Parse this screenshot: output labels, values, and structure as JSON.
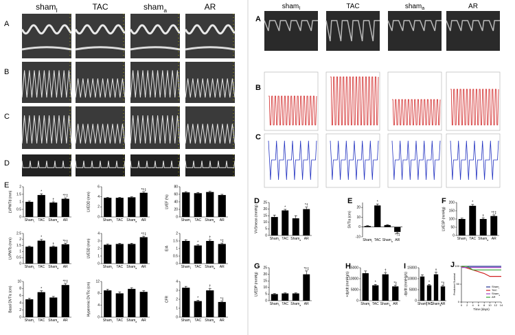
{
  "figure": {
    "left_columns": [
      {
        "text": "sham",
        "sub": "I"
      },
      {
        "text": "TAC"
      },
      {
        "text": "sham",
        "sub": "a"
      },
      {
        "text": "AR"
      }
    ],
    "left_panels": [
      "A",
      "B",
      "C",
      "D",
      "E"
    ],
    "right_columns": [
      {
        "text": "sham",
        "sub": "I"
      },
      {
        "text": "TAC"
      },
      {
        "text": "sham",
        "sub": "a"
      },
      {
        "text": "AR"
      }
    ],
    "right_panels": [
      "A",
      "B",
      "C"
    ]
  },
  "chart_data": [
    {
      "type": "bar",
      "ylabel": "LVPWTd (mm)",
      "categories": [
        "Sham",
        "TAC",
        "Sham",
        "AR"
      ],
      "category_subscripts": [
        "I",
        null,
        "a",
        null
      ],
      "values": [
        1.0,
        1.45,
        0.95,
        1.2
      ],
      "errors": [
        0.05,
        0.08,
        0.05,
        0.06
      ],
      "markers": [
        null,
        "*",
        "†",
        "*†‡"
      ],
      "ylim": [
        0,
        2
      ],
      "yticks": [
        0,
        0.5,
        1,
        1.5,
        2
      ],
      "color": "#000000"
    },
    {
      "type": "bar",
      "ylabel": "LVEDD (mm)",
      "categories": [
        "Sham",
        "TAC",
        "Sham",
        "AR"
      ],
      "category_subscripts": [
        "I",
        null,
        "a",
        null
      ],
      "values": [
        3.8,
        3.8,
        3.9,
        4.8
      ],
      "errors": [
        0.1,
        0.1,
        0.1,
        0.15
      ],
      "markers": [
        null,
        null,
        null,
        "*†‡"
      ],
      "ylim": [
        0,
        6
      ],
      "yticks": [
        0,
        2,
        4,
        6
      ],
      "color": "#000000"
    },
    {
      "type": "bar",
      "ylabel": "LVEF (%)",
      "categories": [
        "Sham",
        "TAC",
        "Sham",
        "AR"
      ],
      "category_subscripts": [
        "I",
        null,
        "a",
        null
      ],
      "values": [
        65,
        63,
        66,
        58
      ],
      "errors": [
        2,
        2,
        2,
        2
      ],
      "markers": [
        null,
        null,
        null,
        null
      ],
      "ylim": [
        0,
        80
      ],
      "yticks": [
        0,
        20,
        40,
        60,
        80
      ],
      "color": "#000000"
    },
    {
      "type": "bar",
      "ylabel": "LVPWTs (mm)",
      "categories": [
        "Sham",
        "TAC",
        "Sham",
        "AR"
      ],
      "category_subscripts": [
        "I",
        null,
        "a",
        null
      ],
      "values": [
        1.4,
        1.9,
        1.4,
        1.6
      ],
      "errors": [
        0.05,
        0.1,
        0.05,
        0.08
      ],
      "markers": [
        null,
        "*",
        "†",
        "*†‡"
      ],
      "ylim": [
        0,
        2.5
      ],
      "yticks": [
        0,
        0.5,
        1,
        1.5,
        2,
        2.5
      ],
      "color": "#000000"
    },
    {
      "type": "bar",
      "ylabel": "LVESD (mm)",
      "categories": [
        "Sham",
        "TAC",
        "Sham",
        "AR"
      ],
      "category_subscripts": [
        "I",
        null,
        "a",
        null
      ],
      "values": [
        2.5,
        2.6,
        2.6,
        3.5
      ],
      "errors": [
        0.1,
        0.1,
        0.1,
        0.12
      ],
      "markers": [
        null,
        null,
        null,
        "*†‡"
      ],
      "ylim": [
        0,
        4
      ],
      "yticks": [
        0,
        1,
        2,
        3,
        4
      ],
      "color": "#000000"
    },
    {
      "type": "bar",
      "ylabel": "E/A",
      "categories": [
        "Sham",
        "TAC",
        "Sham",
        "AR"
      ],
      "category_subscripts": [
        "I",
        null,
        "a",
        null
      ],
      "values": [
        1.5,
        1.2,
        1.5,
        1.3
      ],
      "errors": [
        0.08,
        0.06,
        0.08,
        0.06
      ],
      "markers": [
        null,
        "*",
        "†",
        "*‡"
      ],
      "ylim": [
        0,
        2
      ],
      "yticks": [
        0,
        0.5,
        1,
        1.5,
        2
      ],
      "color": "#000000"
    },
    {
      "type": "bar",
      "ylabel": "Basal DVTIc (cm)",
      "categories": [
        "Sham",
        "TAC",
        "Sham",
        "AR"
      ],
      "category_subscripts": [
        "I",
        null,
        "a",
        null
      ],
      "values": [
        5,
        7,
        5.5,
        9
      ],
      "errors": [
        0.3,
        0.4,
        0.3,
        0.4
      ],
      "markers": [
        null,
        "*",
        null,
        "*†‡"
      ],
      "ylim": [
        0,
        10
      ],
      "yticks": [
        0,
        2,
        4,
        6,
        8,
        10
      ],
      "color": "#000000"
    },
    {
      "type": "bar",
      "ylabel": "Hyperemic DVTIc (cm)",
      "categories": [
        "Sham",
        "TAC",
        "Sham",
        "AR"
      ],
      "category_subscripts": [
        "I",
        null,
        "a",
        null
      ],
      "values": [
        9,
        8,
        9.5,
        8.5
      ],
      "errors": [
        0.4,
        0.5,
        0.4,
        0.4
      ],
      "markers": [
        null,
        null,
        null,
        null
      ],
      "ylim": [
        0,
        12
      ],
      "yticks": [
        0,
        4,
        8,
        12
      ],
      "color": "#000000"
    },
    {
      "type": "bar",
      "ylabel": "CFR",
      "categories": [
        "Sham",
        "TAC",
        "Sham",
        "AR"
      ],
      "category_subscripts": [
        "I",
        null,
        "a",
        null
      ],
      "values": [
        3.3,
        1.8,
        3.0,
        1.7
      ],
      "errors": [
        0.15,
        0.1,
        0.2,
        0.1
      ],
      "markers": [
        null,
        "*",
        "†",
        "*‡"
      ],
      "ylim": [
        0,
        4
      ],
      "yticks": [
        0,
        1,
        2,
        3,
        4
      ],
      "color": "#000000"
    },
    {
      "type": "bar",
      "panel": "D",
      "ylabel": "VVSmean (mmHg)",
      "categories": [
        "Sham",
        "TAC",
        "Sham",
        "AR"
      ],
      "category_subscripts": [
        "I",
        null,
        "a",
        null
      ],
      "values": [
        14,
        19,
        13,
        20
      ],
      "errors": [
        1.5,
        0.8,
        2,
        1.5
      ],
      "markers": [
        null,
        "*",
        null,
        "*†"
      ],
      "ylim": [
        0,
        25
      ],
      "yticks": [
        0,
        5,
        10,
        15,
        20,
        25
      ],
      "color": "#000000"
    },
    {
      "type": "bar",
      "panel": "E",
      "ylabel": "SVTIa (cm)",
      "categories": [
        "Sham",
        "TAC",
        "Sham",
        "AR"
      ],
      "category_subscripts": [
        "I",
        null,
        "a",
        null
      ],
      "values": [
        1,
        22,
        2,
        -5
      ],
      "errors": [
        0.5,
        1.5,
        0.5,
        1
      ],
      "markers": [
        null,
        "*",
        null,
        "*†‡"
      ],
      "ylim": [
        -10,
        25
      ],
      "yticks": [
        -10,
        0,
        10,
        20
      ],
      "color": "#000000"
    },
    {
      "type": "bar",
      "panel": "F",
      "ylabel": "LVESP (mmHg)",
      "categories": [
        "Sham",
        "TAC",
        "Sham",
        "AR"
      ],
      "category_subscripts": [
        "I",
        null,
        "a",
        null
      ],
      "values": [
        100,
        180,
        100,
        118
      ],
      "errors": [
        5,
        8,
        6,
        7
      ],
      "markers": [
        null,
        "*",
        "†",
        "*†‡"
      ],
      "ylim": [
        0,
        200
      ],
      "yticks": [
        0,
        50,
        100,
        150,
        200
      ],
      "color": "#000000"
    },
    {
      "type": "bar",
      "panel": "G",
      "ylabel": "LVEDP (mmHg)",
      "categories": [
        "Sham",
        "TAC",
        "Sham",
        "AR"
      ],
      "category_subscripts": [
        "I",
        null,
        "a",
        null
      ],
      "values": [
        5,
        5.5,
        5.5,
        20
      ],
      "errors": [
        0.4,
        0.4,
        0.4,
        2.5
      ],
      "markers": [
        null,
        null,
        null,
        "*†‡"
      ],
      "ylim": [
        0,
        25
      ],
      "yticks": [
        0,
        5,
        10,
        15,
        20,
        25
      ],
      "color": "#000000"
    },
    {
      "type": "bar",
      "panel": "H",
      "ylabel": "+dp/dt (mmHg/s)",
      "categories": [
        "Sham",
        "TAC",
        "Sham",
        "AR"
      ],
      "category_subscripts": [
        "I",
        null,
        "a",
        null
      ],
      "values": [
        12500,
        7000,
        12000,
        6500
      ],
      "errors": [
        1000,
        400,
        800,
        500
      ],
      "markers": [
        null,
        "*",
        "†",
        "*‡"
      ],
      "ylim": [
        0,
        15000
      ],
      "yticks": [
        0,
        5000,
        10000,
        15000
      ],
      "color": "#000000"
    },
    {
      "type": "bar",
      "panel": "I",
      "ylabel": "-dp/dt (mmHg/s)",
      "categories": [
        "Sham",
        "TAC",
        "Sham",
        "AR"
      ],
      "category_subscripts": [
        "I",
        null,
        "a",
        null
      ],
      "values": [
        11000,
        7000,
        12000,
        6500
      ],
      "errors": [
        800,
        400,
        900,
        500
      ],
      "markers": [
        null,
        "*",
        "†",
        "*‡"
      ],
      "ylim": [
        0,
        15000
      ],
      "yticks": [
        0,
        5000,
        10000,
        15000
      ],
      "color": "#000000"
    },
    {
      "type": "line",
      "panel": "J",
      "ylabel": "Predicted Survival",
      "xlabel": "Time (days)",
      "x": [
        0,
        2,
        4,
        6,
        8,
        10,
        12,
        14
      ],
      "xlim": [
        0,
        14
      ],
      "xticks": [
        0,
        2,
        4,
        6,
        8,
        10,
        12,
        14
      ],
      "ylim": [
        0,
        100
      ],
      "yticks": [
        0,
        50,
        100
      ],
      "legend": "lower right",
      "series": [
        {
          "name": "Sham",
          "sub": "I",
          "color": "#1f2f8f",
          "values": [
            100,
            100,
            100,
            100,
            100,
            100,
            100,
            100
          ]
        },
        {
          "name": "TAC",
          "color": "#d02020",
          "values": [
            100,
            95,
            90,
            85,
            80,
            72,
            72,
            72
          ]
        },
        {
          "name": "Sham",
          "sub": "a",
          "color": "#a040c0",
          "values": [
            97,
            97,
            97,
            97,
            97,
            97,
            97,
            97
          ]
        },
        {
          "name": "AR",
          "color": "#30a030",
          "values": [
            100,
            100,
            90,
            90,
            90,
            90,
            90,
            90
          ]
        }
      ]
    }
  ]
}
